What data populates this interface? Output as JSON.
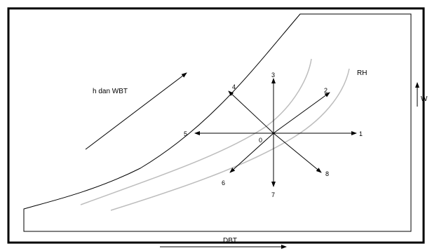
{
  "diagram": {
    "labels": {
      "enthalpy_wbt": "h dan WBT",
      "rh": "RH",
      "w": "W",
      "dbt": "DBT",
      "origin": "0"
    },
    "directions": [
      "1",
      "2",
      "3",
      "4",
      "5",
      "6",
      "7",
      "8"
    ],
    "colors": {
      "frame": "#000000",
      "saturation_line": "#000000",
      "rh_curves": "#bdbdbd",
      "arrows": "#000000"
    }
  }
}
